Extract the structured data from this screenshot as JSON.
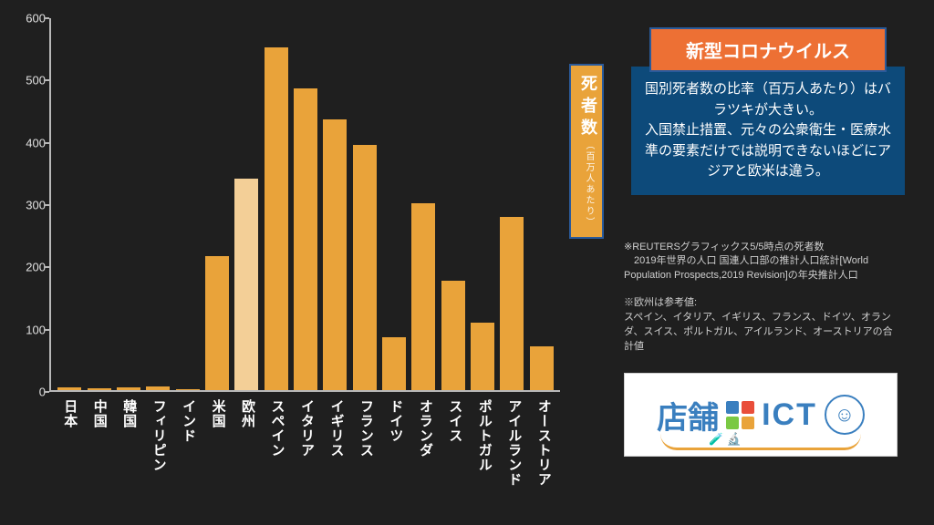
{
  "background_color": "#1f1f1f",
  "chart": {
    "type": "bar",
    "ylim": [
      0,
      600
    ],
    "ytick_step": 100,
    "yticks": [
      0,
      100,
      200,
      300,
      400,
      500,
      600
    ],
    "axis_color": "#b8b8b8",
    "tick_label_color": "#e0e0e0",
    "tick_fontsize": 13,
    "xlabel_color": "#ffffff",
    "xlabel_fontsize": 15,
    "bar_width": 0.72,
    "categories": [
      "日本",
      "中国",
      "韓国",
      "フィリピン",
      "インド",
      "米国",
      "欧州",
      "スペイン",
      "イタリア",
      "イギリス",
      "フランス",
      "ドイツ",
      "オランダ",
      "スイス",
      "ポルトガル",
      "アイルランド",
      "オーストリア"
    ],
    "values": [
      4,
      3,
      5,
      6,
      2,
      215,
      340,
      550,
      485,
      435,
      393,
      85,
      300,
      175,
      108,
      278,
      70
    ],
    "bar_colors": [
      "#e9a33a",
      "#e9a33a",
      "#e9a33a",
      "#e9a33a",
      "#e9a33a",
      "#e9a33a",
      "#f3cf97",
      "#e9a33a",
      "#e9a33a",
      "#e9a33a",
      "#e9a33a",
      "#e9a33a",
      "#e9a33a",
      "#e9a33a",
      "#e9a33a",
      "#e9a33a",
      "#e9a33a"
    ]
  },
  "yaxis_badge": {
    "main": "死者数",
    "sub": "（百万人あたり）",
    "bg_color": "#e9a33a",
    "border_color": "#2a5a9a",
    "text_color": "#ffffff"
  },
  "title_box": {
    "text": "新型コロナウイルス",
    "bg_color": "#ed7034",
    "border_color": "#2a5a9a",
    "text_color": "#ffffff",
    "fontsize": 20
  },
  "desc_box": {
    "text": "国別死者数の比率（百万人あたり）はバラツキが大きい。\n入国禁止措置、元々の公衆衛生・医療水準の要素だけでは説明できないほどにアジアと欧米は違う。",
    "bg_color": "#0d4a7a",
    "text_color": "#ffffff",
    "fontsize": 15
  },
  "footnotes": {
    "note1": "※REUTERSグラフィックス5/5時点の死者数\n　2019年世界の人口 国連人口部の推計人口統計[World Population Prospects,2019 Revision]の年央推計人口",
    "note2": "※欧州は参考値:\nスペイン、イタリア、イギリス、フランス、ドイツ、オランダ、スイス、ポルトガル、アイルランド、オーストリアの合計値",
    "color": "#cfcfcf",
    "fontsize": 11
  },
  "logo": {
    "left_text": "店舗",
    "right_text": "ICT",
    "text_color": "#3a7fbf",
    "bg_color": "#ffffff",
    "square_colors": [
      "#3a7fbf",
      "#e94e3a",
      "#7ac943",
      "#e9a33a"
    ],
    "arc_color": "#e9a33a"
  }
}
